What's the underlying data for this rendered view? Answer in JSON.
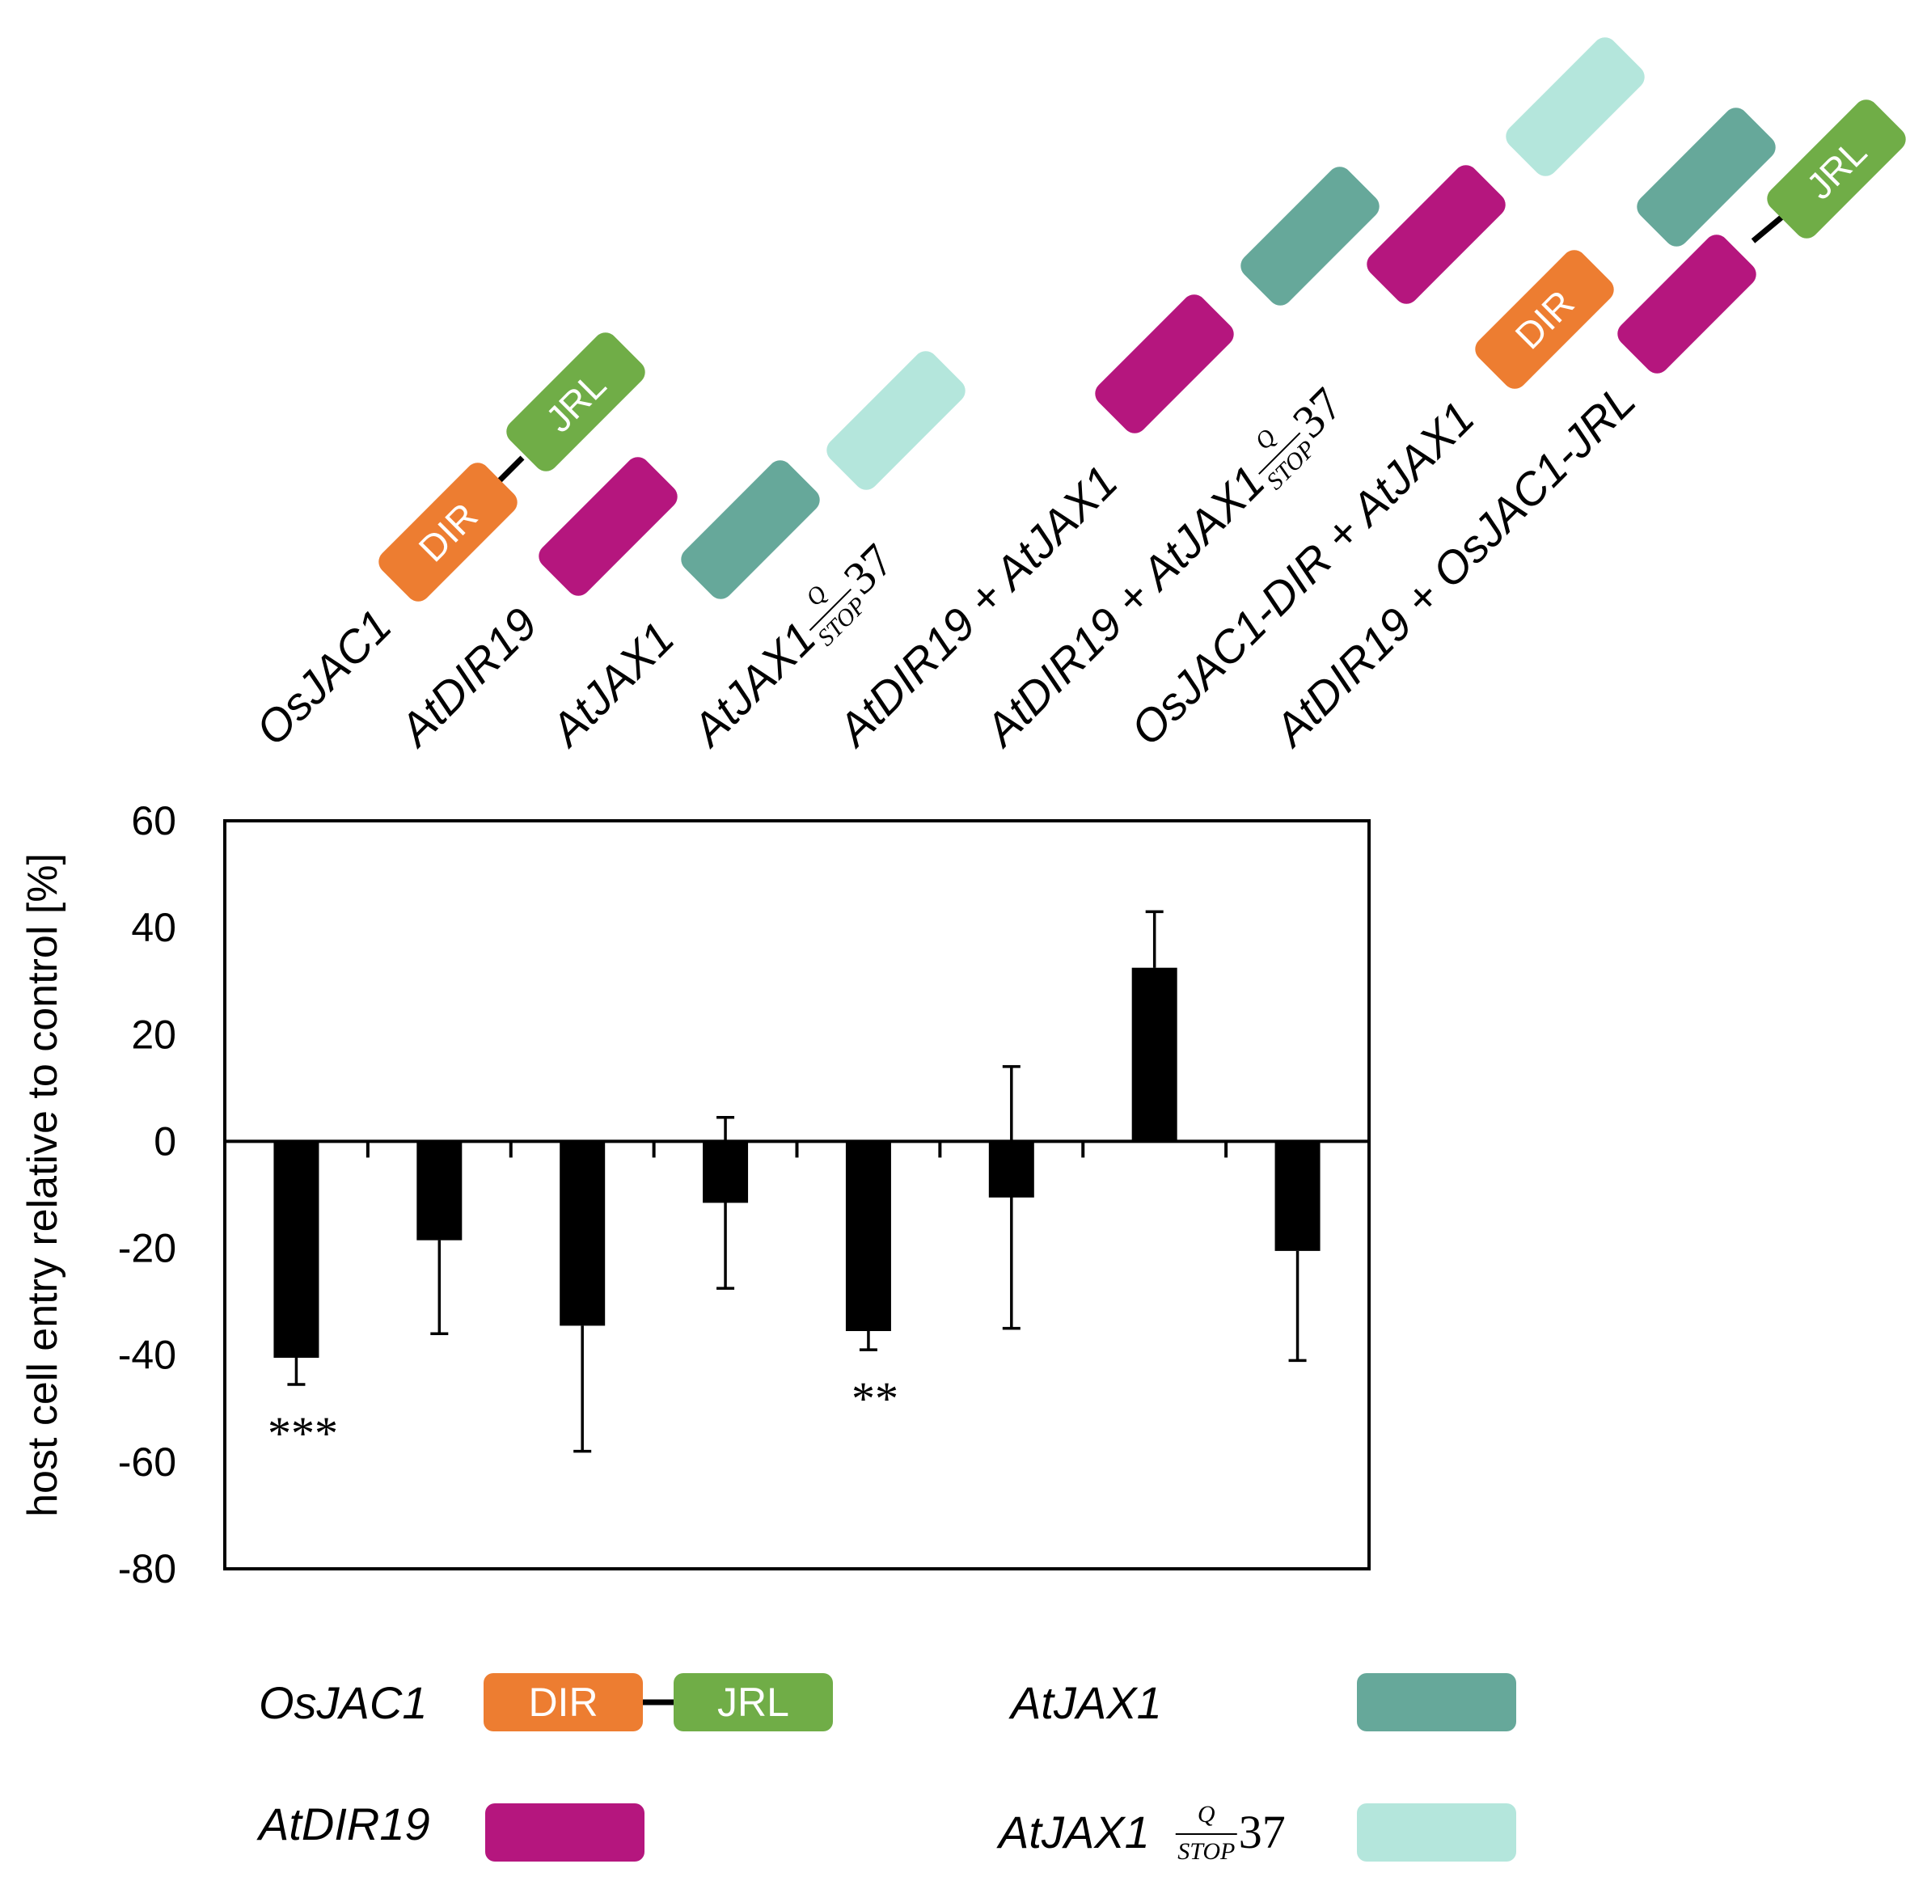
{
  "colors": {
    "dir": "#ED7D31",
    "jrl": "#70AD47",
    "atdir19": "#B5167E",
    "atjax1": "#66A89A",
    "atjax1_stop": "#B4E6DC",
    "bar": "#000000"
  },
  "chart_data": {
    "type": "bar",
    "title": "",
    "xlabel": "",
    "ylabel": "host cell entry relative to control [%]",
    "ylim": [
      -80,
      60
    ],
    "yticks": [
      60,
      40,
      20,
      0,
      -20,
      -40,
      -60,
      -80
    ],
    "ytick_labels": [
      "60",
      "40",
      "20",
      "0",
      "-20",
      "-40",
      "-60",
      "-80"
    ],
    "categories": [
      {
        "label": "OsJAC1",
        "construct": [
          "dir-jrl"
        ]
      },
      {
        "label": "AtDIR19",
        "construct": [
          "atdir19"
        ]
      },
      {
        "label": "AtJAX1",
        "construct": [
          "atjax1"
        ]
      },
      {
        "label": "AtJAX1",
        "mutation": {
          "num": "Q",
          "den": "STOP",
          "pos": "37"
        },
        "construct": [
          "atjax1_stop"
        ]
      },
      {
        "label": "AtDIR19 + AtJAX1",
        "construct": [
          "atdir19",
          "atjax1"
        ]
      },
      {
        "label": "AtDIR19 + AtJAX1",
        "mutation": {
          "num": "Q",
          "den": "STOP",
          "pos": "37"
        },
        "construct": [
          "atdir19",
          "atjax1_stop"
        ]
      },
      {
        "label": "OsJAC1-DIR + AtJAX1",
        "construct": [
          "dir",
          "atjax1"
        ]
      },
      {
        "label": "AtDIR19 + OsJAC1-JRL",
        "construct": [
          "atdir19",
          "jrl"
        ]
      }
    ],
    "values": [
      -40.5,
      -18.5,
      -34.5,
      -11.5,
      -35.5,
      -10.5,
      32.5,
      -20.5
    ],
    "error_bars": [
      5.0,
      17.5,
      23.5,
      16.0,
      3.5,
      24.5,
      10.5,
      20.5
    ],
    "error_direction": [
      "down",
      "down",
      "down",
      "both",
      "down",
      "both",
      "up",
      "down"
    ],
    "significance": [
      "***",
      "",
      "",
      "",
      "**",
      "",
      "",
      ""
    ],
    "domain_labels": {
      "dir": "DIR",
      "jrl": "JRL"
    },
    "legend": [
      {
        "label": "OsJAC1",
        "swatch": "dir-jrl"
      },
      {
        "label": "AtJAX1",
        "swatch": "atjax1"
      },
      {
        "label": "AtDIR19",
        "swatch": "atdir19"
      },
      {
        "label": "AtJAX1",
        "mutation": {
          "num": "Q",
          "den": "STOP",
          "pos": "37"
        },
        "swatch": "atjax1_stop"
      }
    ]
  }
}
